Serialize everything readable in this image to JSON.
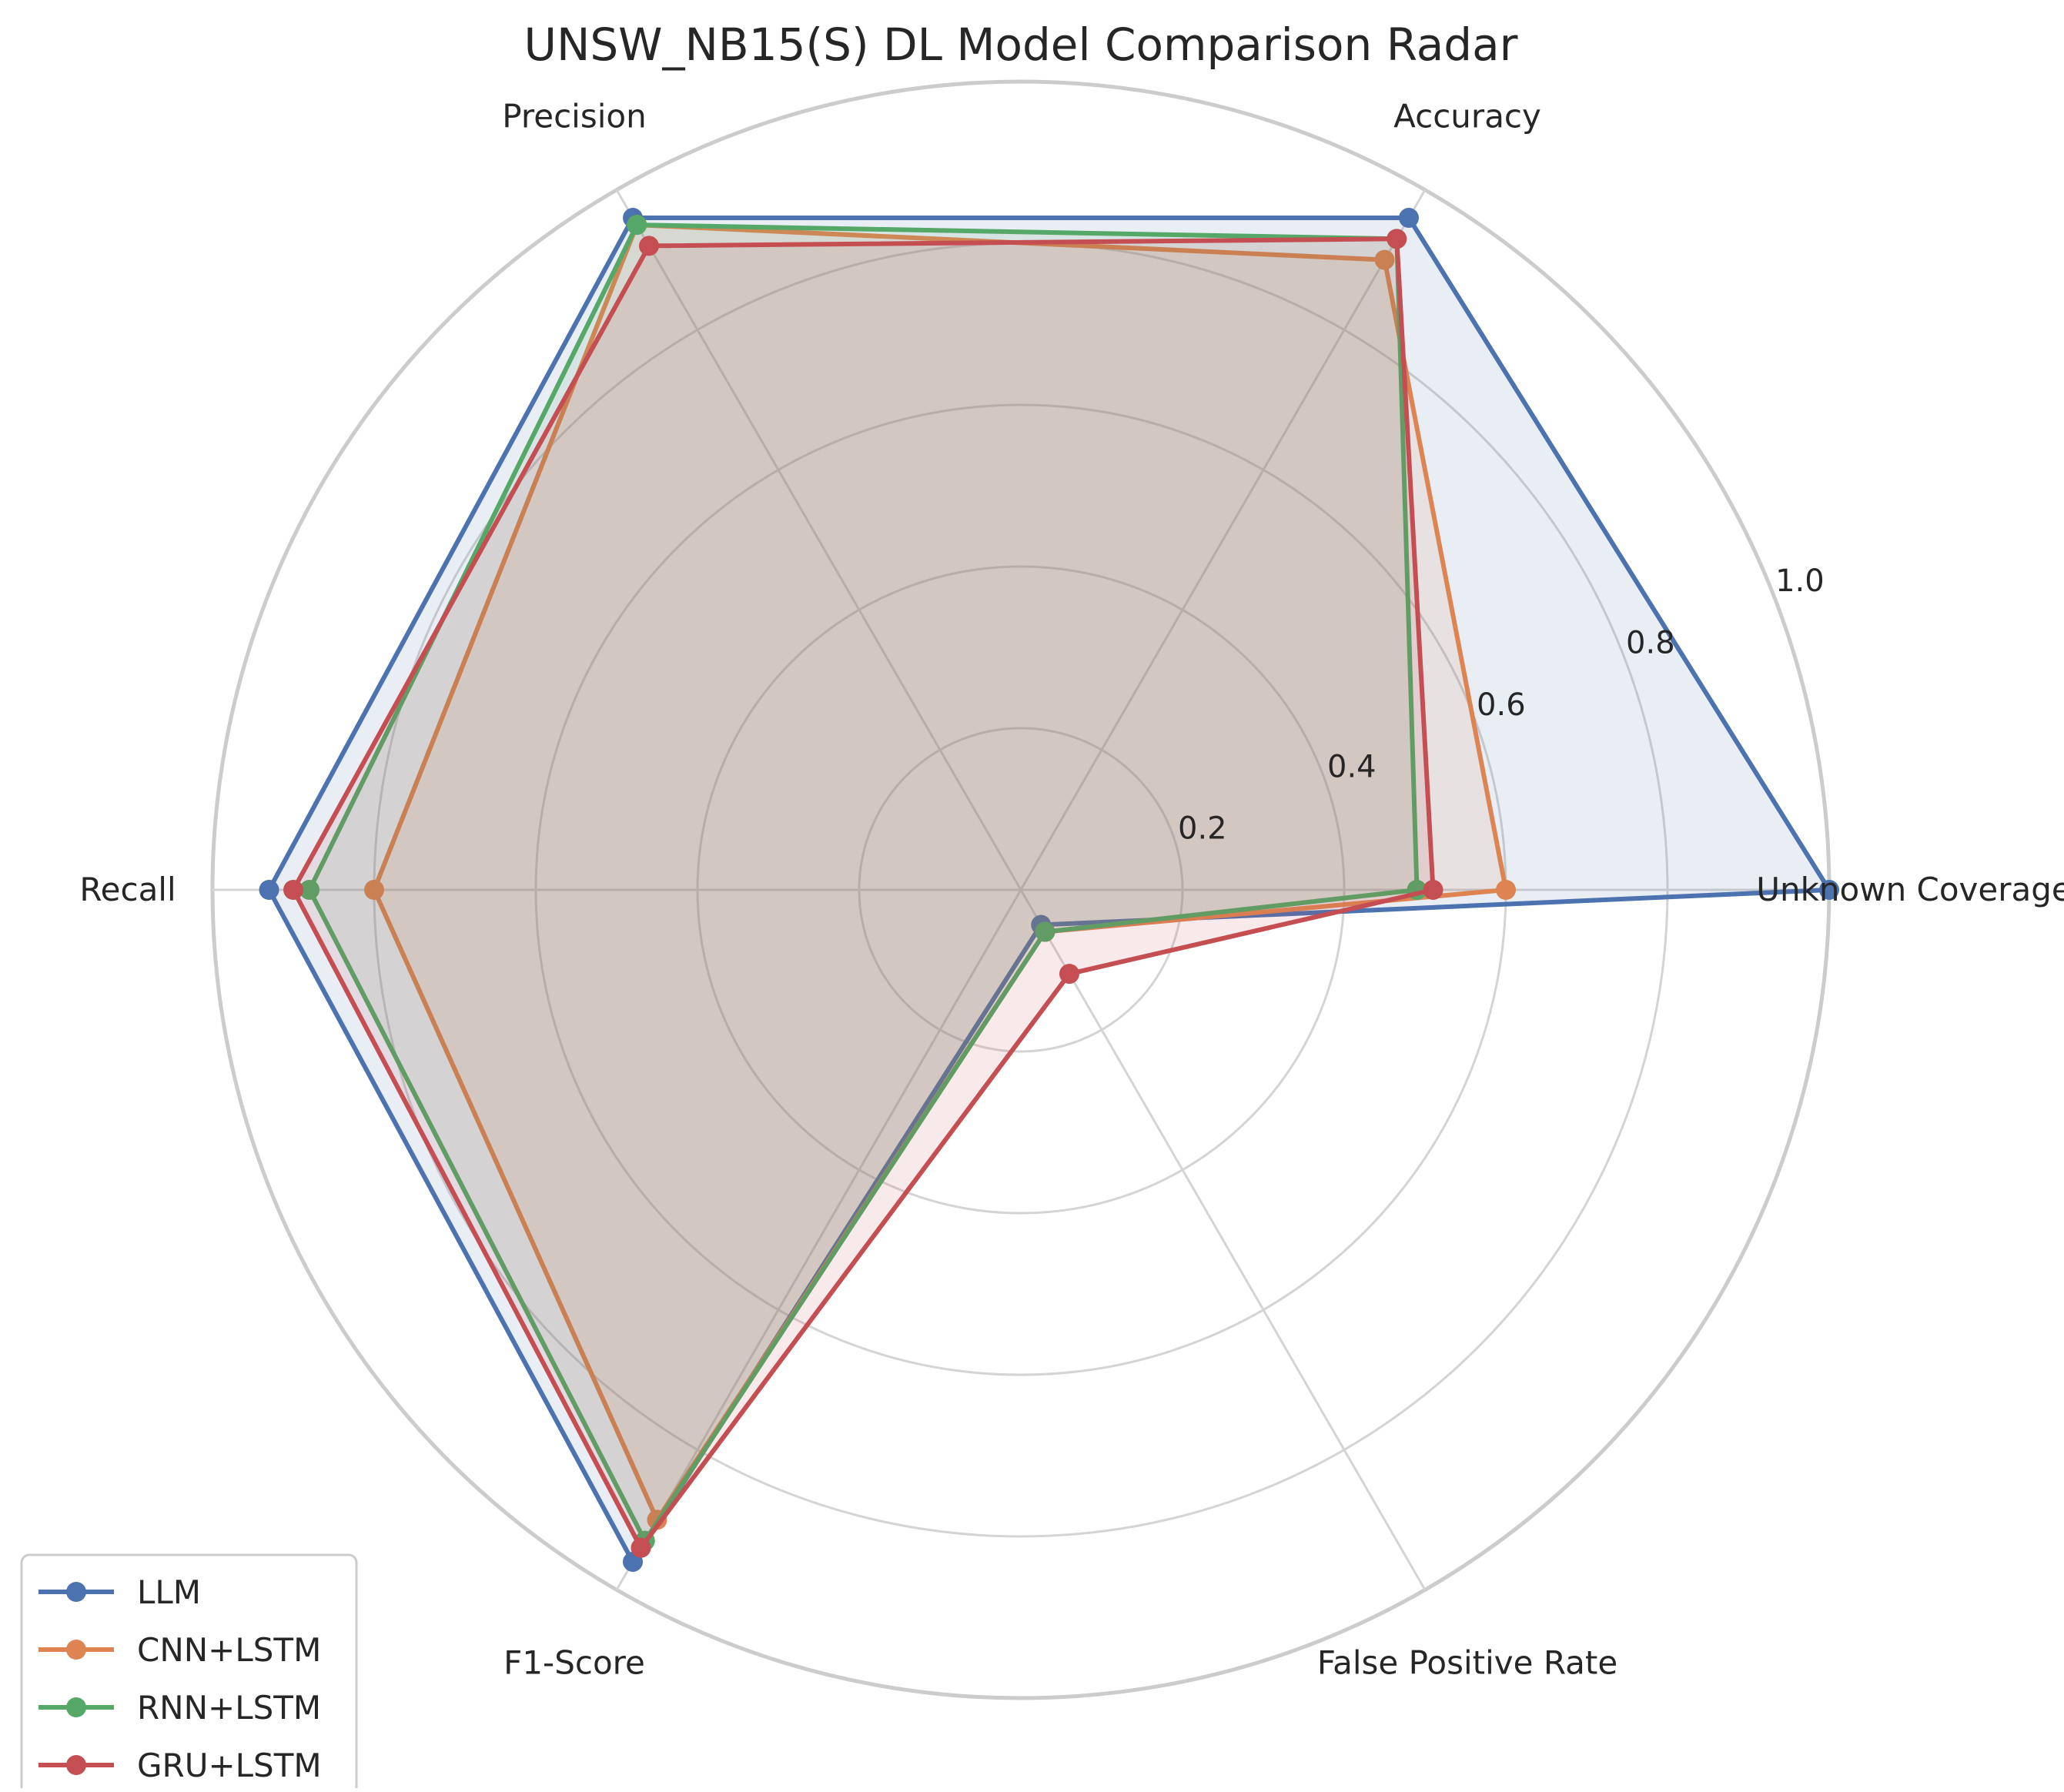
{
  "chart_data": {
    "type": "radar",
    "title": "UNSW_NB15(S) DL Model Comparison Radar",
    "axes": [
      "Unknown Coverage",
      "Accuracy",
      "Precision",
      "Recall",
      "F1-Score",
      "False Positive Rate"
    ],
    "rlim": [
      0,
      1.0
    ],
    "rticks": [
      "0.2",
      "0.4",
      "0.6",
      "0.8",
      "1.0"
    ],
    "grid": true,
    "legend_position": "lower-left",
    "series": [
      {
        "name": "LLM",
        "color": "#4c72b0",
        "values": [
          1.0,
          0.96,
          0.96,
          0.93,
          0.96,
          0.05
        ]
      },
      {
        "name": "CNN+LSTM",
        "color": "#dd8452",
        "values": [
          0.6,
          0.9,
          0.95,
          0.8,
          0.9,
          0.06
        ]
      },
      {
        "name": "RNN+LSTM",
        "color": "#55a868",
        "values": [
          0.49,
          0.93,
          0.95,
          0.88,
          0.93,
          0.06
        ]
      },
      {
        "name": "GRU+LSTM",
        "color": "#c44e52",
        "values": [
          0.51,
          0.93,
          0.92,
          0.9,
          0.94,
          0.12
        ]
      }
    ]
  }
}
